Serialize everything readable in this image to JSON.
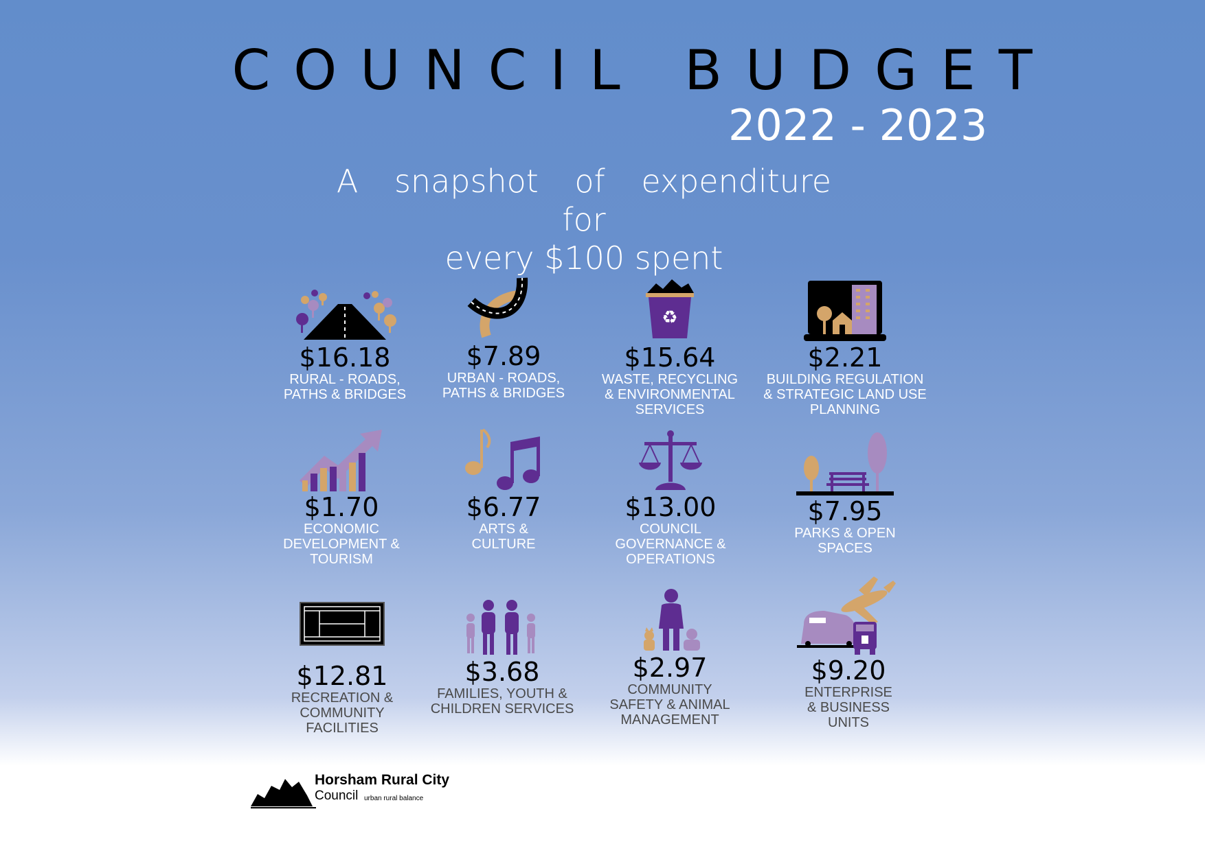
{
  "header": {
    "title": "COUNCIL BUDGET",
    "years": "2022 - 2023",
    "subtitle_line1": "A snapshot of expenditure for",
    "subtitle_line2": "every $100 spent"
  },
  "items": [
    {
      "amount": "$16.18",
      "label": "RURAL - ROADS,\nPATHS & BRIDGES"
    },
    {
      "amount": "$7.89",
      "label": "URBAN - ROADS,\nPATHS & BRIDGES"
    },
    {
      "amount": "$15.64",
      "label": "WASTE, RECYCLING\n& ENVIRONMENTAL\nSERVICES"
    },
    {
      "amount": "$2.21",
      "label": "BUILDING REGULATION\n& STRATEGIC LAND USE\nPLANNING"
    },
    {
      "amount": "$1.70",
      "label": "ECONOMIC\nDEVELOPMENT &\nTOURISM"
    },
    {
      "amount": "$6.77",
      "label": "ARTS &\nCULTURE"
    },
    {
      "amount": "$13.00",
      "label": "COUNCIL\nGOVERNANCE &\nOPERATIONS"
    },
    {
      "amount": "$7.95",
      "label": "PARKS & OPEN\nSPACES"
    },
    {
      "amount": "$12.81",
      "label": "RECREATION &\nCOMMUNITY\nFACILITIES"
    },
    {
      "amount": "$3.68",
      "label": "FAMILIES, YOUTH &\nCHILDREN SERVICES"
    },
    {
      "amount": "$2.97",
      "label": "COMMUNITY\nSAFETY & ANIMAL\nMANAGEMENT"
    },
    {
      "amount": "$9.20",
      "label": "ENTERPRISE\n& BUSINESS\nUNITS"
    }
  ],
  "logo": {
    "name": "Horsham Rural City",
    "council": "Council",
    "tagline": "urban rural balance"
  },
  "colors": {
    "purple": "#5e2d91",
    "lilac": "#a78bc0",
    "tan": "#d4a56a",
    "black": "#000000"
  },
  "icons": [
    "rural-road-icon",
    "urban-road-icon",
    "recycle-bin-icon",
    "building-planning-icon",
    "growth-chart-icon",
    "music-notes-icon",
    "scales-icon",
    "park-bench-icon",
    "tennis-court-icon",
    "family-icon",
    "person-with-pets-icon",
    "transport-icon"
  ]
}
